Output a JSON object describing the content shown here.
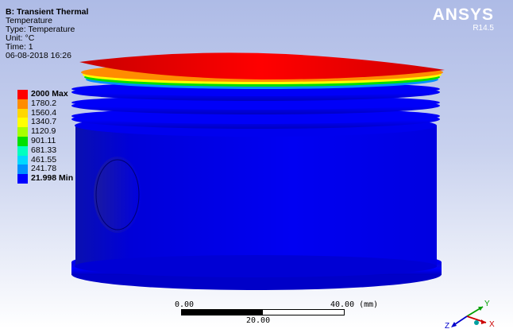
{
  "header": {
    "title": "B: Transient Thermal",
    "lines": [
      "Temperature",
      "Type: Temperature",
      "Unit: °C",
      "Time: 1",
      "06-08-2018 16:26"
    ]
  },
  "logo": {
    "brand": "ANSYS",
    "release": "R14.5"
  },
  "legend": {
    "entries": [
      {
        "label": "2000 Max",
        "color": "#ff0000",
        "bold": true
      },
      {
        "label": "1780.2",
        "color": "#ff8c00",
        "bold": false
      },
      {
        "label": "1560.4",
        "color": "#ffd700",
        "bold": false
      },
      {
        "label": "1340.7",
        "color": "#ffff00",
        "bold": false
      },
      {
        "label": "1120.9",
        "color": "#a6ff00",
        "bold": false
      },
      {
        "label": "901.11",
        "color": "#00e000",
        "bold": false
      },
      {
        "label": "681.33",
        "color": "#00ffc0",
        "bold": false
      },
      {
        "label": "461.55",
        "color": "#00d8ff",
        "bold": false
      },
      {
        "label": "241.78",
        "color": "#0090ff",
        "bold": false
      },
      {
        "label": "21.998 Min",
        "color": "#0000ff",
        "bold": true
      }
    ]
  },
  "scale": {
    "left_label": "0.00",
    "right_label": "40.00 (mm)",
    "mid_label": "20.00"
  },
  "triad": {
    "y_label": "Y",
    "x_label": "X",
    "z_label": "Z"
  },
  "colors": {
    "hot": "#ff0000",
    "cold": "#0000ee",
    "background_top": "#aebbe6",
    "background_bottom": "#ffffff"
  }
}
